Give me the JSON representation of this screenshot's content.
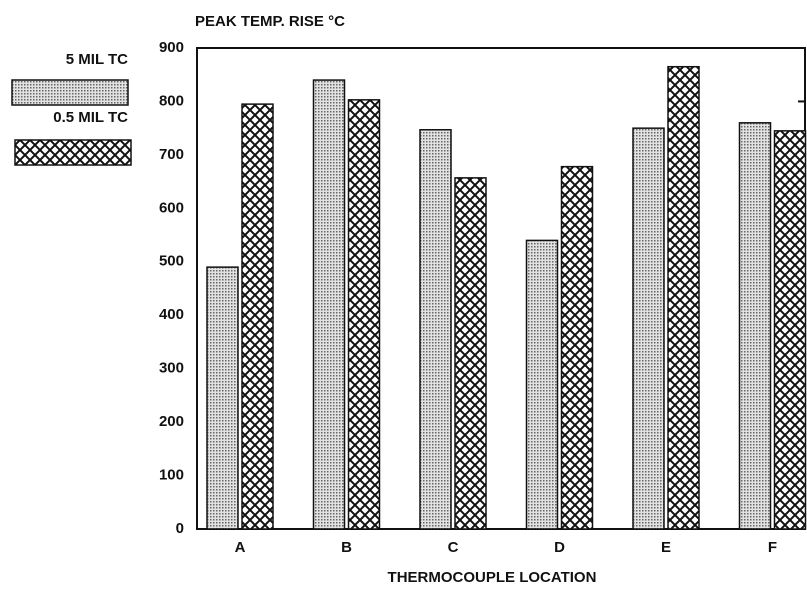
{
  "chart_data": {
    "type": "bar",
    "title": "PEAK TEMP. RISE °C",
    "x_label": "THERMOCOUPLE LOCATION",
    "categories": [
      "A",
      "B",
      "C",
      "D",
      "E",
      "F"
    ],
    "series": [
      {
        "name": "5 MIL TC",
        "color": "#9a9a9a",
        "pattern": "dots",
        "values": [
          490,
          840,
          747,
          540,
          750,
          760
        ]
      },
      {
        "name": "0.5 MIL TC",
        "color": "#111111",
        "pattern": "crosshatch",
        "values": [
          795,
          803,
          657,
          678,
          865,
          745
        ]
      }
    ],
    "ylim": [
      0,
      900
    ],
    "yticks": [
      0,
      100,
      200,
      300,
      400,
      500,
      600,
      700,
      800,
      900
    ]
  }
}
